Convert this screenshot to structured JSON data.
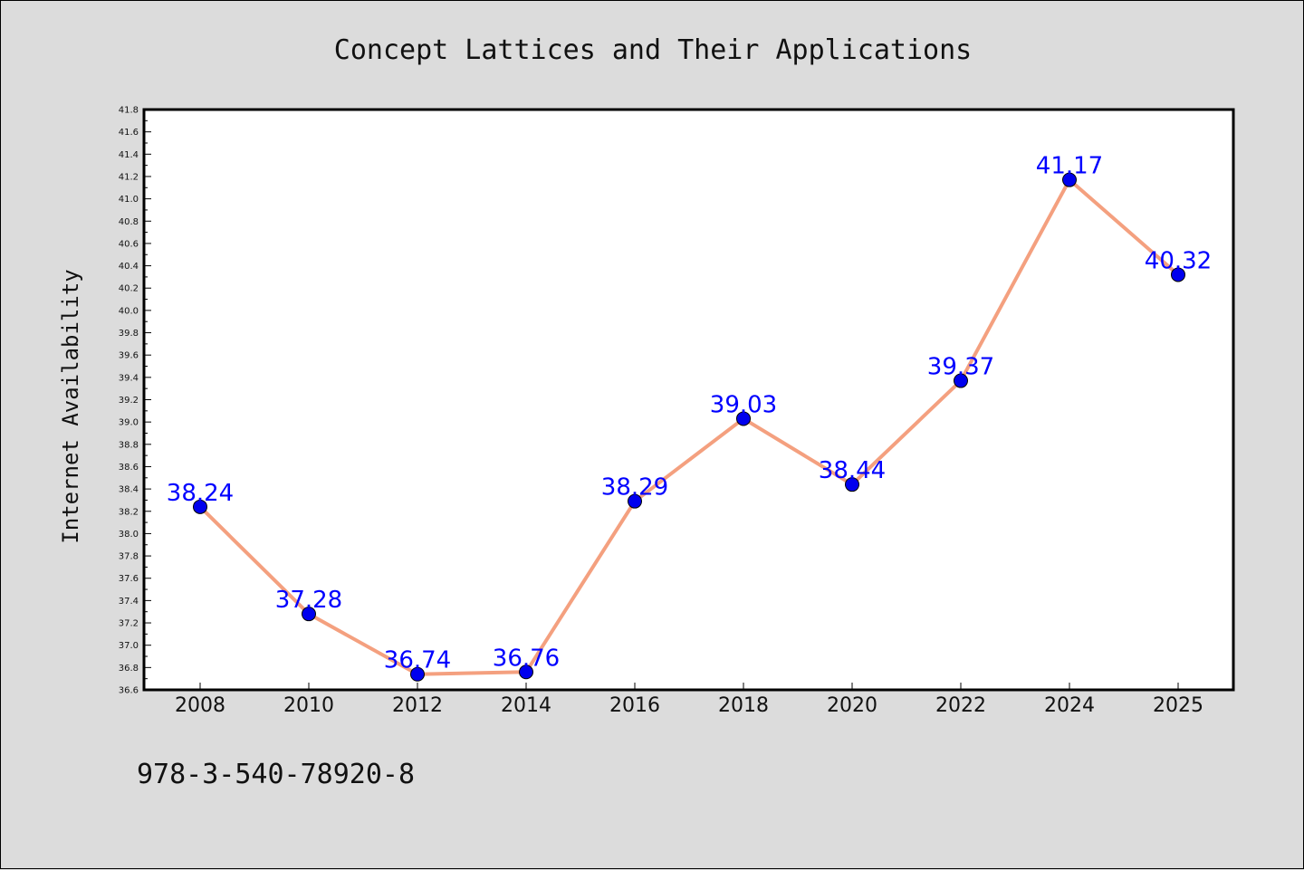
{
  "chart_data": {
    "type": "line",
    "title": "Concept Lattices and Their Applications",
    "xlabel": "",
    "ylabel": "Internet Availability",
    "categories": [
      "2008",
      "2010",
      "2012",
      "2014",
      "2016",
      "2018",
      "2020",
      "2022",
      "2024",
      "2025"
    ],
    "series": [
      {
        "values": [
          38.24,
          37.28,
          36.74,
          36.76,
          38.29,
          39.03,
          38.44,
          39.37,
          41.17,
          40.32
        ],
        "line_color": "#f4a07f",
        "marker_color": "#0000ee",
        "label_color": "#0000ff"
      }
    ],
    "data_labels": [
      "38.24",
      "37.28",
      "36.74",
      "36.76",
      "38.29",
      "39.03",
      "38.44",
      "39.37",
      "41.17",
      "40.32"
    ],
    "ylim": [
      36.6,
      41.8
    ],
    "yticks": [
      "36.6",
      "36.8",
      "37.0",
      "37.2",
      "37.4",
      "37.6",
      "37.8",
      "38.0",
      "38.2",
      "38.4",
      "38.6",
      "38.8",
      "39.0",
      "39.2",
      "39.4",
      "39.6",
      "39.8",
      "40.0",
      "40.2",
      "40.4",
      "40.6",
      "40.8",
      "41.0",
      "41.2",
      "41.4",
      "41.6",
      "41.8"
    ],
    "grid": false,
    "legend": "none"
  },
  "footnote": "978-3-540-78920-8"
}
